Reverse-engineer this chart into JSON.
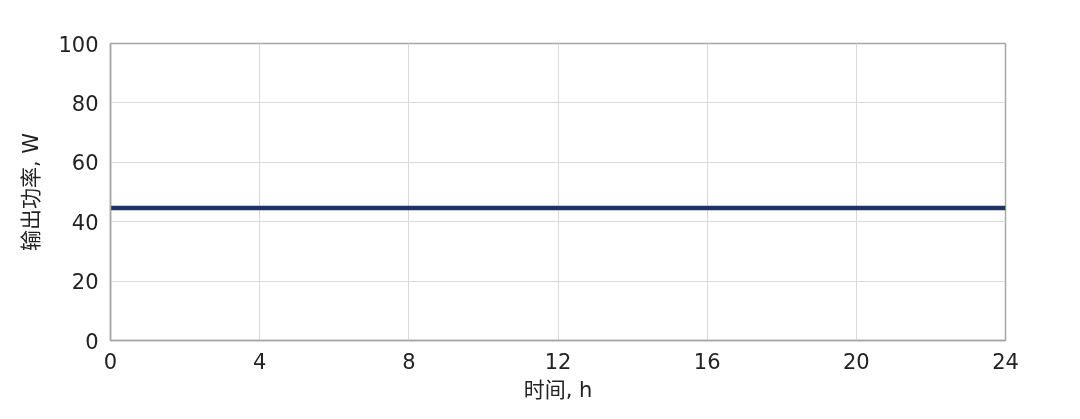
{
  "chart_data": {
    "type": "line",
    "xlabel": "时间, h",
    "ylabel": "输出功率, W",
    "x": [
      0,
      24
    ],
    "series": [
      {
        "color": "#1f3263",
        "values": [
          44.6,
          44.6
        ]
      }
    ],
    "xlim": [
      0,
      24
    ],
    "xticks": [
      0,
      4,
      8,
      12,
      16,
      20,
      24
    ],
    "ylim": [
      0,
      100
    ],
    "yticks": [
      0,
      20,
      40,
      60,
      80,
      100
    ],
    "grid": true,
    "marker": "none",
    "line_style": "solid"
  }
}
